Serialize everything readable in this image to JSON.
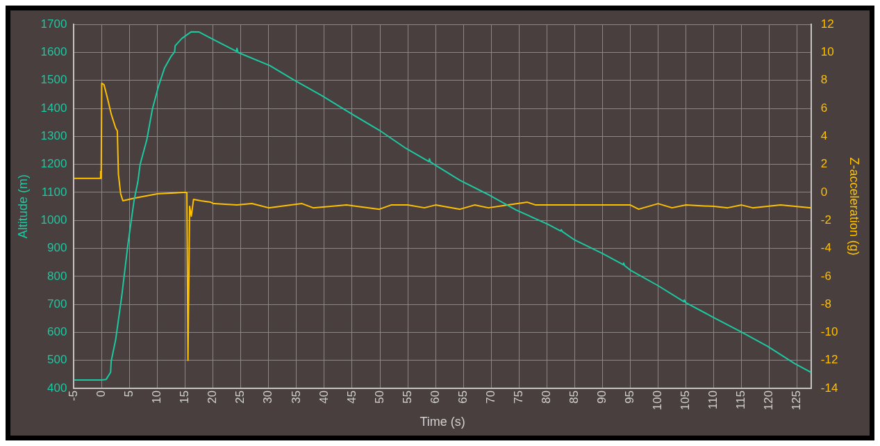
{
  "chart_data": {
    "type": "line",
    "xlabel": "Time (s)",
    "ylabel": "Altitude (m)",
    "y2label": "Z-acceleration (g)",
    "xlim": [
      -5,
      127.5
    ],
    "xticks": [
      -5,
      0,
      5,
      10,
      15,
      20,
      25,
      30,
      35,
      40,
      45,
      50,
      55,
      60,
      65,
      70,
      75,
      80,
      85,
      90,
      95,
      100,
      105,
      110,
      115,
      120,
      125
    ],
    "ylim": [
      400,
      1700
    ],
    "yticks": [
      400,
      500,
      600,
      700,
      800,
      900,
      1000,
      1100,
      1200,
      1300,
      1400,
      1500,
      1600,
      1700
    ],
    "y2lim": [
      -14,
      12
    ],
    "y2ticks": [
      -14,
      -12,
      -10,
      -8,
      -6,
      -4,
      -2,
      0,
      2,
      4,
      6,
      8,
      10,
      12
    ],
    "grid": true,
    "marker": "none",
    "line_style": "solid",
    "series": [
      {
        "color": "#1cc9a2",
        "x": [
          -5,
          0,
          0.8,
          1.6,
          1.7,
          2.5,
          3.6,
          4.7,
          5.8,
          6.5,
          6.9,
          8.1,
          9.1,
          10.2,
          11.3,
          12.4,
          13.1,
          13.2,
          14.4,
          16.1,
          17.5,
          19.7,
          24.2,
          24.3,
          24.5,
          30.2,
          34.6,
          39.6,
          44.7,
          49.9,
          54.7,
          58.8,
          58.9,
          59.1,
          64.4,
          69.2,
          74.5,
          80.2,
          82.5,
          82.6,
          82.8,
          85.0,
          90.0,
          93.7,
          93.8,
          94.0,
          95.1,
          99.9,
          104.6,
          104.7,
          104.9,
          109.8,
          114.9,
          119.7,
          124.5,
          127.5
        ],
        "values": [
          430,
          430,
          432,
          458,
          497,
          573,
          730,
          913,
          1070,
          1139,
          1200,
          1288,
          1397,
          1479,
          1545,
          1584,
          1602,
          1624,
          1650,
          1674,
          1673,
          1650,
          1604,
          1615,
          1600,
          1553,
          1501,
          1445,
          1383,
          1322,
          1257,
          1210,
          1220,
          1208,
          1143,
          1095,
          1037,
          986,
          962,
          967,
          960,
          930,
          882,
          842,
          848,
          838,
          821,
          768,
          710,
          716,
          707,
          655,
          602,
          550,
          489,
          457
        ]
      },
      {
        "axis": "y2",
        "color": "#ffc000",
        "x": [
          -5,
          -0.3,
          -0.2,
          -0.1,
          0,
          0.4,
          1.05,
          1.7,
          2.1,
          2.5,
          2.8,
          3.0,
          3.4,
          3.8,
          6.0,
          10.0,
          14.7,
          15.3,
          15.5,
          15.8,
          16.1,
          16.5,
          17.8,
          19.6,
          20.1,
          24.3,
          27,
          30,
          34,
          36,
          38,
          44,
          49.9,
          52,
          55,
          58,
          60,
          64.4,
          67,
          69.5,
          73,
          76.5,
          78,
          85,
          95,
          96.5,
          100,
          102.5,
          105,
          110,
          112.5,
          115,
          117,
          122,
          127.5
        ],
        "values": [
          1.0,
          1.0,
          1.5,
          1.0,
          7.8,
          7.7,
          6.7,
          5.6,
          5.1,
          4.6,
          4.4,
          1.3,
          -0.1,
          -0.6,
          -0.4,
          -0.1,
          0.0,
          0.0,
          -12,
          -1.0,
          -1.7,
          -0.5,
          -0.6,
          -0.7,
          -0.8,
          -0.9,
          -0.8,
          -1.1,
          -0.9,
          -0.8,
          -1.1,
          -0.9,
          -1.2,
          -0.9,
          -0.9,
          -1.1,
          -0.9,
          -1.2,
          -0.9,
          -1.1,
          -0.9,
          -0.7,
          -0.9,
          -0.9,
          -0.9,
          -1.2,
          -0.8,
          -1.1,
          -0.9,
          -1.0,
          -1.1,
          -0.9,
          -1.1,
          -0.9,
          -1.1
        ]
      }
    ]
  }
}
